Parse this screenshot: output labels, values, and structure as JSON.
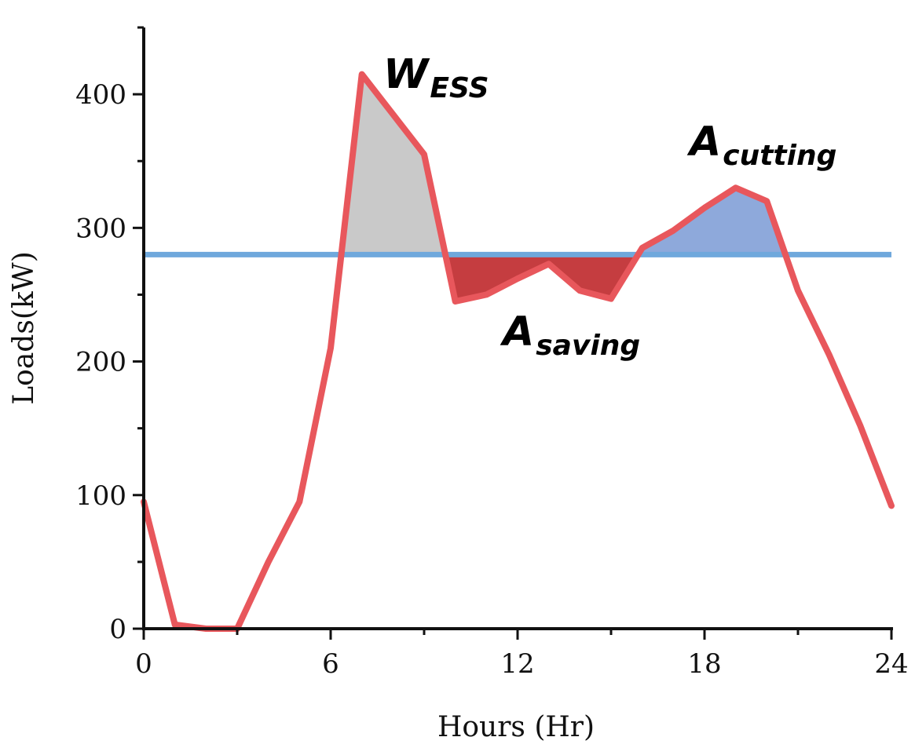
{
  "chart_data": {
    "type": "line",
    "title": "",
    "xlabel": "Hours (Hr)",
    "ylabel": "Loads(kW)",
    "xlim": [
      0,
      24
    ],
    "ylim": [
      0,
      450
    ],
    "x_ticks": [
      0,
      6,
      12,
      18,
      24
    ],
    "y_ticks": [
      0,
      100,
      200,
      300,
      400
    ],
    "grid": false,
    "threshold": 280,
    "series": [
      {
        "color": "#e8575c",
        "x": [
          0,
          1,
          2,
          3,
          4,
          5,
          6,
          7,
          8,
          9,
          10,
          11,
          12,
          13,
          14,
          15,
          16,
          17,
          18,
          19,
          20,
          21,
          22,
          23,
          24
        ],
        "values": [
          95,
          3,
          0,
          0,
          50,
          95,
          210,
          415,
          385,
          355,
          245,
          250,
          262,
          273,
          253,
          247,
          285,
          298,
          315,
          330,
          320,
          253,
          205,
          152,
          92
        ]
      }
    ],
    "annotations": [
      {
        "main": "W",
        "sub": "ESS",
        "fill_color": "#c9c9c9",
        "edge_color": "#7a7a7a"
      },
      {
        "main": "A",
        "sub": "saving",
        "fill_color": "#c53d40",
        "edge_color": "#a83336"
      },
      {
        "main": "A",
        "sub": "cutting",
        "fill_color": "#8ea9db",
        "edge_color": "#274a8a"
      }
    ],
    "colors": {
      "load_line": "#e8575c",
      "threshold_line": "#6fa8dc",
      "axis": "#111111"
    }
  }
}
